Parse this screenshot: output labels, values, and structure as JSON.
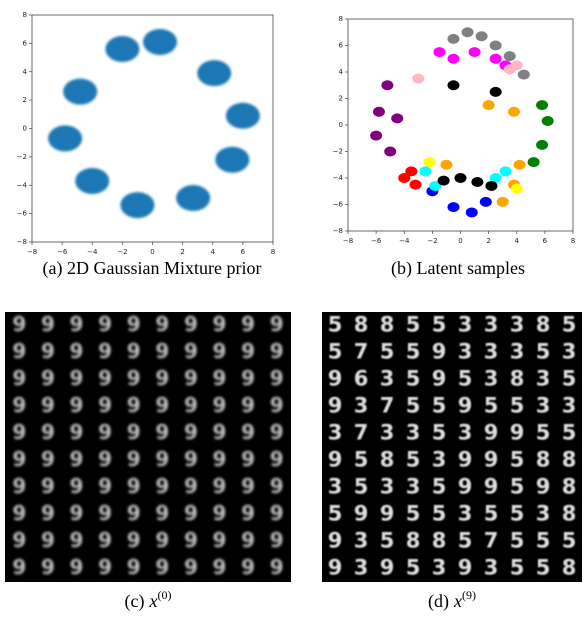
{
  "chart_data": [
    {
      "type": "scatter",
      "caption": "(a) 2D Gaussian Mixture prior",
      "xlim": [
        -8,
        8
      ],
      "ylim": [
        -8,
        8
      ],
      "xticks": [
        {
          "value": -8,
          "label": "−8"
        },
        {
          "value": -6,
          "label": "−6"
        },
        {
          "value": -4,
          "label": "−4"
        },
        {
          "value": -2,
          "label": "−2"
        },
        0,
        2,
        4,
        6,
        8
      ],
      "yticks": [
        {
          "value": -8,
          "label": "−8"
        },
        {
          "value": -6,
          "label": "−6"
        },
        {
          "value": -4,
          "label": "−4"
        },
        {
          "value": -2,
          "label": "−2"
        },
        0,
        2,
        4,
        6,
        8
      ],
      "series": [
        {
          "color": "#1f77b4",
          "x": [
            -2.0,
            0.5,
            4.1,
            6.0,
            5.3,
            2.7,
            -1.0,
            -4.0,
            -5.8,
            -4.8
          ],
          "y": [
            5.6,
            6.1,
            3.9,
            0.9,
            -2.2,
            -4.9,
            -5.4,
            -3.7,
            -0.7,
            2.6
          ]
        }
      ]
    },
    {
      "type": "scatter",
      "caption": "(b) Latent samples",
      "xlim": [
        -8,
        8
      ],
      "ylim": [
        -8,
        8
      ],
      "xticks": [
        {
          "value": -8,
          "label": "−8"
        },
        {
          "value": -6,
          "label": "−6"
        },
        {
          "value": -4,
          "label": "−4"
        },
        {
          "value": -2,
          "label": "−2"
        },
        0,
        2,
        4,
        6,
        8
      ],
      "yticks": [
        {
          "value": -8,
          "label": "−8"
        },
        {
          "value": -6,
          "label": "−6"
        },
        {
          "value": -4,
          "label": "−4"
        },
        {
          "value": -2,
          "label": "−2"
        },
        0,
        2,
        4,
        6,
        8
      ],
      "series": [
        {
          "color": "#808080",
          "x": [
            -0.5,
            0.5,
            1.5,
            2.5,
            3.5,
            4.5
          ],
          "y": [
            6.5,
            7.0,
            6.7,
            6.0,
            5.2,
            3.8
          ]
        },
        {
          "color": "#ff00ff",
          "x": [
            -1.5,
            -0.5,
            1.0,
            2.5,
            3.2
          ],
          "y": [
            5.5,
            5.0,
            5.5,
            5.0,
            4.5
          ]
        },
        {
          "color": "#ffb6c1",
          "x": [
            3.5,
            4.0,
            -3.0
          ],
          "y": [
            4.2,
            4.5,
            3.5
          ]
        },
        {
          "color": "#800080",
          "x": [
            -5.8,
            -5.2,
            -6.0,
            -5.0,
            -4.5
          ],
          "y": [
            1.0,
            3.0,
            -0.8,
            -2.0,
            0.5
          ]
        },
        {
          "color": "#ff0000",
          "x": [
            -4.0,
            -3.5,
            -3.2
          ],
          "y": [
            -4.0,
            -3.5,
            -4.5
          ]
        },
        {
          "color": "#0000ff",
          "x": [
            -2.0,
            -0.5,
            0.8,
            1.8
          ],
          "y": [
            -5.0,
            -6.2,
            -6.6,
            -5.8
          ]
        },
        {
          "color": "#00ffff",
          "x": [
            -2.5,
            -1.8,
            2.5,
            3.2
          ],
          "y": [
            -3.5,
            -4.6,
            -4.0,
            -3.5
          ]
        },
        {
          "color": "#ffa500",
          "x": [
            3.0,
            3.8,
            4.2,
            3.8,
            -1.0,
            2.0
          ],
          "y": [
            -5.8,
            -4.5,
            -3.0,
            1.0,
            -3.0,
            1.5
          ]
        },
        {
          "color": "#008000",
          "x": [
            5.8,
            6.2,
            5.8,
            5.2
          ],
          "y": [
            1.5,
            0.3,
            -1.5,
            -2.8
          ]
        },
        {
          "color": "#000000",
          "x": [
            -1.2,
            0.0,
            1.2,
            2.2,
            -0.5,
            2.5
          ],
          "y": [
            -4.2,
            -4.0,
            -4.3,
            -4.6,
            3.0,
            2.5
          ]
        },
        {
          "color": "#ffff00",
          "x": [
            -2.2,
            4.0
          ],
          "y": [
            -2.8,
            -4.8
          ]
        }
      ]
    }
  ],
  "image_grids": [
    {
      "caption_label": "(c)",
      "caption_var": "x",
      "caption_sup": "(0)",
      "glyph": "9",
      "rows": 10,
      "cols": 10
    },
    {
      "caption_label": "(d)",
      "caption_var": "x",
      "caption_sup": "(9)",
      "digits": [
        [
          "5",
          "8",
          "8",
          "5",
          "5",
          "3",
          "3",
          "3",
          "8",
          "5"
        ],
        [
          "5",
          "7",
          "5",
          "5",
          "9",
          "3",
          "3",
          "3",
          "5",
          "3"
        ],
        [
          "9",
          "6",
          "3",
          "5",
          "9",
          "5",
          "3",
          "8",
          "3",
          "5"
        ],
        [
          "9",
          "3",
          "7",
          "5",
          "5",
          "9",
          "5",
          "5",
          "3",
          "3"
        ],
        [
          "3",
          "7",
          "3",
          "3",
          "5",
          "3",
          "9",
          "9",
          "5",
          "5"
        ],
        [
          "9",
          "5",
          "8",
          "5",
          "3",
          "9",
          "9",
          "5",
          "8",
          "8"
        ],
        [
          "3",
          "5",
          "3",
          "3",
          "5",
          "9",
          "9",
          "5",
          "9",
          "8"
        ],
        [
          "5",
          "9",
          "9",
          "5",
          "5",
          "3",
          "5",
          "5",
          "3",
          "8"
        ],
        [
          "9",
          "3",
          "5",
          "8",
          "8",
          "5",
          "7",
          "5",
          "5",
          "5"
        ],
        [
          "9",
          "3",
          "9",
          "5",
          "3",
          "9",
          "3",
          "5",
          "5",
          "8"
        ]
      ]
    }
  ]
}
